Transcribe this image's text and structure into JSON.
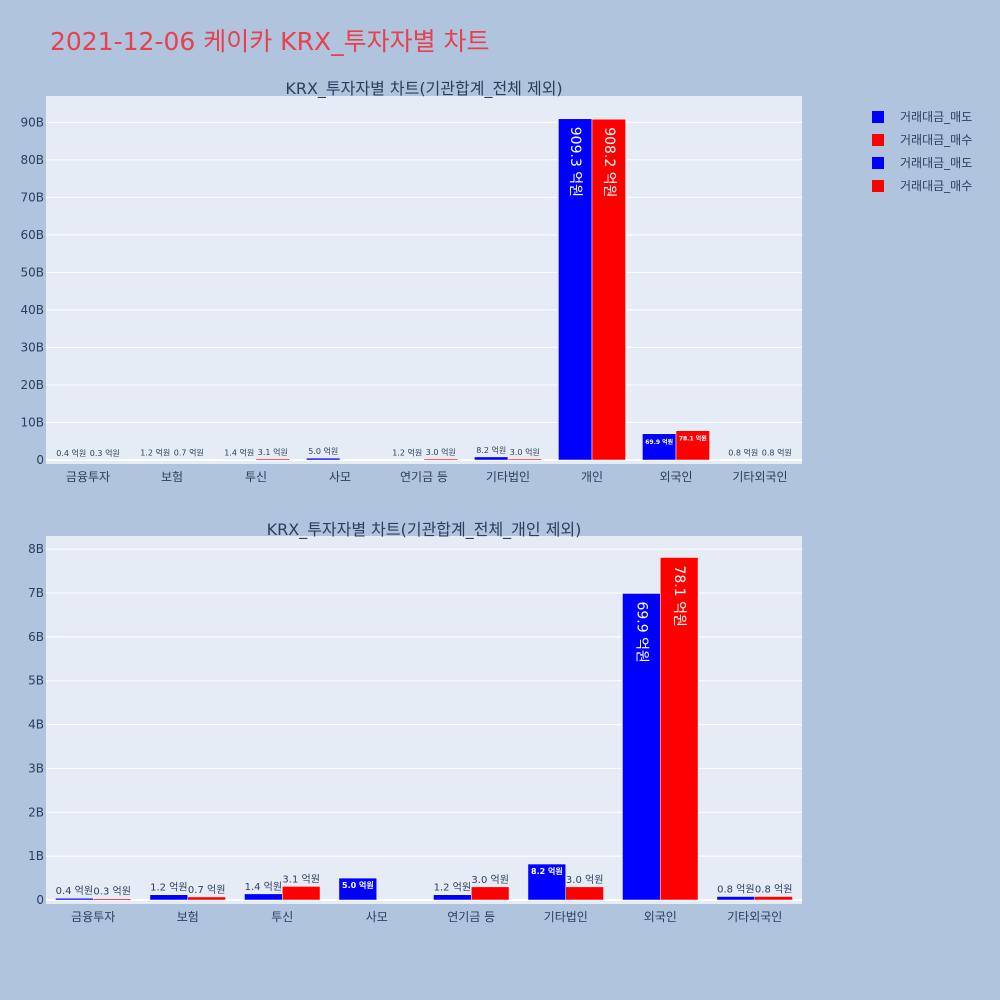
{
  "page_title": "2021-12-06 케이카 KRX_투자자별 차트",
  "colors": {
    "background": "#b0c4de",
    "plot_bg": "#e5ecf6",
    "grid": "#ffffff",
    "text": "#2a3f5f",
    "title": "#e8404f",
    "sell": "#0000ff",
    "buy": "#ff0000"
  },
  "legend": [
    {
      "name": "거래대금_매도",
      "color": "#0000ff"
    },
    {
      "name": "거래대금_매수",
      "color": "#ff0000"
    },
    {
      "name": "거래대금_매도",
      "color": "#0000ff"
    },
    {
      "name": "거래대금_매수",
      "color": "#ff0000"
    }
  ],
  "chart_data": [
    {
      "type": "bar",
      "title": "KRX_투자자별 차트(기관합계_전체 제외)",
      "categories": [
        "금융투자",
        "보험",
        "투신",
        "사모",
        "연기금 등",
        "기타법인",
        "개인",
        "외국인",
        "기타외국인"
      ],
      "ylim": [
        0,
        97000000000
      ],
      "yticks": [
        0,
        10000000000,
        20000000000,
        30000000000,
        40000000000,
        50000000000,
        60000000000,
        70000000000,
        80000000000,
        90000000000
      ],
      "ytick_labels": [
        "0",
        "10B",
        "20B",
        "30B",
        "40B",
        "50B",
        "60B",
        "70B",
        "80B",
        "90B"
      ],
      "series": [
        {
          "name": "거래대금_매도",
          "values": [
            40000000,
            120000000,
            140000000,
            500000000,
            120000000,
            820000000,
            90930000000,
            6990000000,
            80000000
          ],
          "labels": [
            "0.4 억원",
            "1.2 억원",
            "1.4 억원",
            "5.0 억원",
            "1.2 억원",
            "8.2 억원",
            "909.3 억원",
            "69.9 억원",
            "0.8 억원"
          ]
        },
        {
          "name": "거래대금_매수",
          "values": [
            30000000,
            70000000,
            310000000,
            0,
            300000000,
            300000000,
            90820000000,
            7810000000,
            80000000
          ],
          "labels": [
            "0.3 억원",
            "0.7 억원",
            "3.1 억원",
            "",
            "3.0 억원",
            "3.0 억원",
            "908.2 억원",
            "78.1 억원",
            "0.8 억원"
          ]
        }
      ]
    },
    {
      "type": "bar",
      "title": "KRX_투자자별 차트(기관합계_전체_개인 제외)",
      "categories": [
        "금융투자",
        "보험",
        "투신",
        "사모",
        "연기금 등",
        "기타법인",
        "외국인",
        "기타외국인"
      ],
      "ylim": [
        0,
        8300000000
      ],
      "yticks": [
        0,
        1000000000,
        2000000000,
        3000000000,
        4000000000,
        5000000000,
        6000000000,
        7000000000,
        8000000000
      ],
      "ytick_labels": [
        "0",
        "1B",
        "2B",
        "3B",
        "4B",
        "5B",
        "6B",
        "7B",
        "8B"
      ],
      "series": [
        {
          "name": "거래대금_매도",
          "values": [
            40000000,
            120000000,
            140000000,
            500000000,
            120000000,
            820000000,
            6990000000,
            80000000
          ],
          "labels": [
            "0.4 억원",
            "1.2 억원",
            "1.4 억원",
            "5.0 억원",
            "1.2 억원",
            "8.2 억원",
            "69.9 억원",
            "0.8 억원"
          ]
        },
        {
          "name": "거래대금_매수",
          "values": [
            30000000,
            70000000,
            310000000,
            0,
            300000000,
            300000000,
            7810000000,
            80000000
          ],
          "labels": [
            "0.3 억원",
            "0.7 억원",
            "3.1 억원",
            "",
            "3.0 억원",
            "3.0 억원",
            "78.1 억원",
            "0.8 억원"
          ]
        }
      ]
    }
  ]
}
